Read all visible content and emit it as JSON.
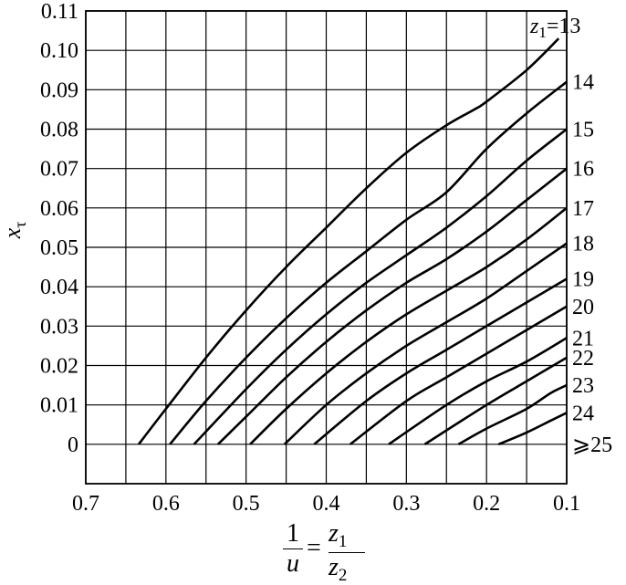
{
  "chart_data": {
    "type": "line",
    "xlabel_parts": {
      "one": "1",
      "u": "u",
      "eq": "=",
      "z": "z",
      "sub1": "1",
      "sub2": "2"
    },
    "ylabel": {
      "main": "x",
      "sub": "τ"
    },
    "x_ticks": [
      "0.7",
      "0.6",
      "0.5",
      "0.4",
      "0.3",
      "0.2",
      "0.1"
    ],
    "y_ticks": [
      "0",
      "0.01",
      "0.02",
      "0.03",
      "0.04",
      "0.05",
      "0.06",
      "0.07",
      "0.08",
      "0.09",
      "0.10",
      "0.11"
    ],
    "xlim": [
      0.7,
      0.1
    ],
    "ylim": [
      -0.01,
      0.11
    ],
    "grid": true,
    "series": [
      {
        "name": "z1=13",
        "label_parts": {
          "z": "z",
          "sub": "1",
          "rest": "=13"
        },
        "x": [
          0.634,
          0.6,
          0.55,
          0.5,
          0.45,
          0.4,
          0.35,
          0.3,
          0.25,
          0.215,
          0.2,
          0.15,
          0.11
        ],
        "y": [
          0,
          0.009,
          0.022,
          0.034,
          0.045,
          0.055,
          0.065,
          0.074,
          0.081,
          0.085,
          0.087,
          0.095,
          0.103
        ]
      },
      {
        "name": "14",
        "label": "14",
        "x": [
          0.595,
          0.55,
          0.5,
          0.45,
          0.4,
          0.35,
          0.3,
          0.25,
          0.2,
          0.15,
          0.1
        ],
        "y": [
          0,
          0.011,
          0.022,
          0.032,
          0.041,
          0.049,
          0.057,
          0.064,
          0.075,
          0.084,
          0.092
        ]
      },
      {
        "name": "15",
        "label": "15",
        "x": [
          0.565,
          0.5,
          0.45,
          0.4,
          0.35,
          0.3,
          0.25,
          0.2,
          0.15,
          0.1
        ],
        "y": [
          0,
          0.014,
          0.024,
          0.033,
          0.041,
          0.048,
          0.055,
          0.063,
          0.072,
          0.08
        ]
      },
      {
        "name": "16",
        "label": "16",
        "x": [
          0.535,
          0.5,
          0.45,
          0.4,
          0.35,
          0.3,
          0.25,
          0.2,
          0.15,
          0.1
        ],
        "y": [
          0,
          0.007,
          0.017,
          0.026,
          0.034,
          0.041,
          0.047,
          0.054,
          0.062,
          0.07
        ]
      },
      {
        "name": "17",
        "label": "17",
        "x": [
          0.495,
          0.45,
          0.4,
          0.35,
          0.3,
          0.25,
          0.2,
          0.15,
          0.1
        ],
        "y": [
          0,
          0.009,
          0.018,
          0.026,
          0.033,
          0.039,
          0.045,
          0.052,
          0.06
        ]
      },
      {
        "name": "18",
        "label": "18",
        "x": [
          0.452,
          0.4,
          0.35,
          0.3,
          0.25,
          0.2,
          0.15,
          0.1
        ],
        "y": [
          0,
          0.01,
          0.018,
          0.025,
          0.031,
          0.037,
          0.044,
          0.051
        ]
      },
      {
        "name": "19",
        "label": "19",
        "x": [
          0.415,
          0.35,
          0.3,
          0.25,
          0.2,
          0.15,
          0.1
        ],
        "y": [
          0,
          0.011,
          0.018,
          0.024,
          0.03,
          0.036,
          0.042
        ]
      },
      {
        "name": "20",
        "label": "20",
        "x": [
          0.37,
          0.3,
          0.25,
          0.2,
          0.15,
          0.1
        ],
        "y": [
          0,
          0.011,
          0.017,
          0.023,
          0.029,
          0.035
        ]
      },
      {
        "name": "21",
        "label": "21",
        "x": [
          0.322,
          0.25,
          0.2,
          0.15,
          0.1
        ],
        "y": [
          0,
          0.01,
          0.016,
          0.021,
          0.027
        ]
      },
      {
        "name": "22",
        "label": "22",
        "x": [
          0.277,
          0.2,
          0.15,
          0.1
        ],
        "y": [
          0,
          0.01,
          0.016,
          0.022
        ]
      },
      {
        "name": "23",
        "label": "23",
        "x": [
          0.235,
          0.2,
          0.15,
          0.12,
          0.1
        ],
        "y": [
          0,
          0.004,
          0.009,
          0.013,
          0.015
        ]
      },
      {
        "name": "24",
        "label": "24",
        "x": [
          0.185,
          0.15,
          0.12,
          0.1
        ],
        "y": [
          0,
          0.003,
          0.006,
          0.008
        ]
      },
      {
        "name": "≥25",
        "label": "⩾25"
      }
    ]
  }
}
